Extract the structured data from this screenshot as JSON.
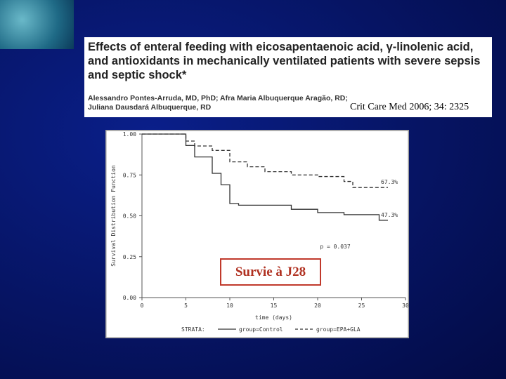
{
  "header": {
    "title": "Effects of enteral feeding with eicosapentaenoic acid, γ-linolenic acid, and antioxidants in mechanically ventilated patients with severe sepsis and septic shock*",
    "authors": "Alessandro Pontes-Arruda, MD, PhD; Afra Maria Albuquerque Aragão, RD; Juliana Dausdará Albuquerque, RD"
  },
  "citation": "Crit Care Med 2006; 34: 2325",
  "callout": "Survie à J28",
  "chart_data": {
    "type": "step",
    "x_label": "time (days)",
    "y_label": "Survival Distribution Function",
    "xlim": [
      0,
      30
    ],
    "xticks": [
      0,
      5,
      10,
      15,
      20,
      25,
      30
    ],
    "ylim": [
      0,
      1
    ],
    "yticks": [
      {
        "value": 0,
        "label": "0.00"
      },
      {
        "value": 0.25,
        "label": "0.25"
      },
      {
        "value": 0.5,
        "label": "0.50"
      },
      {
        "value": 0.75,
        "label": "0.75"
      },
      {
        "value": 1,
        "label": "1.00"
      }
    ],
    "annotation": "p = 0.037",
    "legend_title": "STRATA:",
    "series": [
      {
        "name": "group=Control",
        "color": "#333333",
        "dash": false,
        "x": [
          0,
          5,
          6,
          8,
          9,
          10,
          11,
          17,
          20,
          23,
          27,
          28
        ],
        "values": [
          1,
          0.93,
          0.86,
          0.76,
          0.69,
          0.575,
          0.565,
          0.54,
          0.52,
          0.507,
          0.473,
          0.473
        ],
        "value_labels": [
          null,
          null,
          null,
          null,
          null,
          null,
          null,
          null,
          null,
          null,
          null,
          "47.3%"
        ]
      },
      {
        "name": "group=EPA+GLA",
        "color": "#333333",
        "dash": true,
        "x": [
          0,
          5,
          6,
          8,
          10,
          12,
          14,
          17,
          20,
          23,
          24,
          28
        ],
        "values": [
          1,
          0.957,
          0.927,
          0.9,
          0.83,
          0.8,
          0.77,
          0.75,
          0.74,
          0.71,
          0.673,
          0.673
        ],
        "value_labels": [
          null,
          null,
          null,
          null,
          null,
          null,
          null,
          null,
          null,
          null,
          null,
          "67.3%"
        ]
      }
    ]
  }
}
